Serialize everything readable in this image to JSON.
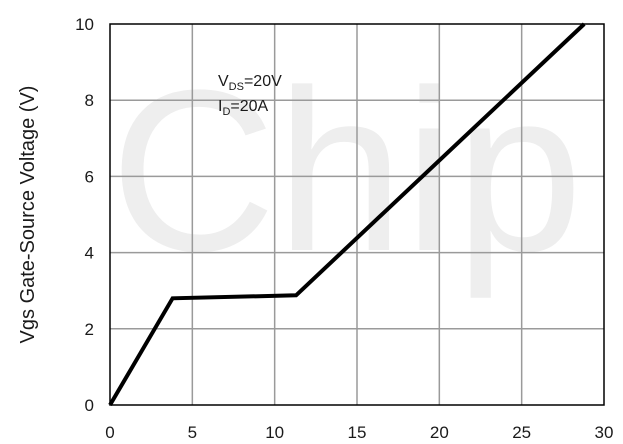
{
  "chart_data": {
    "type": "line",
    "title": "",
    "xlabel": "",
    "ylabel": "Vgs Gate-Source Voltage (V)",
    "xlim": [
      0,
      30
    ],
    "ylim": [
      0,
      10
    ],
    "x_ticks": [
      0,
      5,
      10,
      15,
      20,
      25,
      30
    ],
    "y_ticks": [
      0,
      2,
      4,
      6,
      8,
      10
    ],
    "grid": true,
    "series": [
      {
        "x": [
          0,
          3.8,
          11.3,
          28.8
        ],
        "y": [
          0,
          2.8,
          2.88,
          10.0
        ]
      }
    ],
    "annotations": [
      {
        "main": "V",
        "sub": "DS",
        "rest": "=20V"
      },
      {
        "main": "I",
        "sub": "D",
        "rest": "=20A"
      }
    ],
    "colors": {
      "line": "#000000",
      "grid": "#9a9a9a",
      "frame": "#000000"
    }
  },
  "watermark": "Chip"
}
